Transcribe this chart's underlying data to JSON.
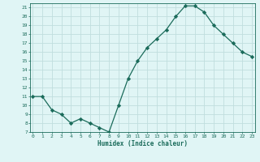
{
  "xlabel": "Humidex (Indice chaleur)",
  "x": [
    0,
    1,
    2,
    3,
    4,
    5,
    6,
    7,
    8,
    9,
    10,
    11,
    12,
    13,
    14,
    15,
    16,
    17,
    18,
    19,
    20,
    21,
    22,
    23
  ],
  "y": [
    11,
    11,
    9.5,
    9,
    8,
    8.5,
    8,
    7.5,
    7,
    10,
    13,
    15,
    16.5,
    17.5,
    18.5,
    20,
    21.2,
    21.2,
    20.5,
    19,
    18,
    17,
    16,
    15.5
  ],
  "line_color": "#1a6b5a",
  "marker": "D",
  "marker_size": 2.2,
  "bg_color": "#e0f5f5",
  "grid_color": "#c0dede",
  "tick_color": "#1a6b5a",
  "label_color": "#1a6b5a",
  "ylim": [
    7,
    21.5
  ],
  "yticks": [
    7,
    8,
    9,
    10,
    11,
    12,
    13,
    14,
    15,
    16,
    17,
    18,
    19,
    20,
    21
  ],
  "xticks": [
    0,
    1,
    2,
    3,
    4,
    5,
    6,
    7,
    8,
    9,
    10,
    11,
    12,
    13,
    14,
    15,
    16,
    17,
    18,
    19,
    20,
    21,
    22,
    23
  ]
}
